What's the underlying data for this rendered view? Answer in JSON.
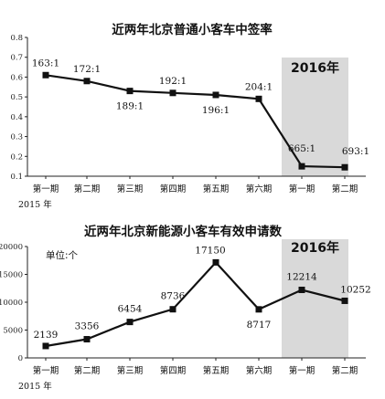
{
  "chart_data": [
    {
      "type": "line",
      "title": "近两年北京普通小客车中签率",
      "highlight_label": "2016年",
      "categories": [
        "第一期",
        "第二期",
        "第三期",
        "第四期",
        "第五期",
        "第六期",
        "第一期",
        "第二期"
      ],
      "x_footnote": "2015 年",
      "yticks": [
        "0.1",
        "0.2",
        "0.3",
        "0.4",
        "0.5",
        "0.6",
        "0.7",
        "0.8"
      ],
      "ylim": [
        0.1,
        0.8
      ],
      "series": [
        {
          "values": [
            0.61,
            0.58,
            0.53,
            0.52,
            0.51,
            0.49,
            0.15,
            0.145
          ]
        }
      ],
      "labels": [
        "163:1",
        "172:1",
        "189:1",
        "192:1",
        "196:1",
        "204:1",
        "665:1",
        "693:1"
      ],
      "highlight_categories": [
        6,
        7
      ]
    },
    {
      "type": "line",
      "title": "近两年北京新能源小客车有效申请数",
      "unit": "单位:个",
      "highlight_label": "2016年",
      "categories": [
        "第一期",
        "第二期",
        "第三期",
        "第四期",
        "第五期",
        "第六期",
        "第一期",
        "第二期"
      ],
      "x_footnote": "2015 年",
      "yticks": [
        "0",
        "5000",
        "10000",
        "15000",
        "20000"
      ],
      "ylim": [
        0,
        20000
      ],
      "series": [
        {
          "values": [
            2139,
            3356,
            6454,
            8736,
            17150,
            8717,
            12214,
            10252
          ]
        }
      ],
      "labels": [
        "2139",
        "3356",
        "6454",
        "8736",
        "17150",
        "8717",
        "12214",
        "10252"
      ],
      "highlight_categories": [
        6,
        7
      ]
    }
  ]
}
